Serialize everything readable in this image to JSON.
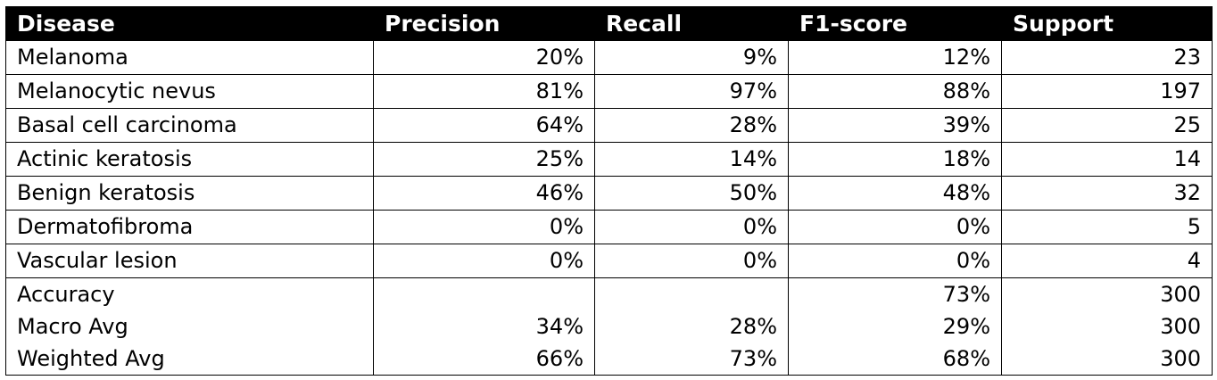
{
  "table": {
    "headers": [
      "Disease",
      "Precision",
      "Recall",
      "F1-score",
      "Support"
    ],
    "rows": [
      [
        "Melanoma",
        "20%",
        "9%",
        "12%",
        "23"
      ],
      [
        "Melanocytic nevus",
        "81%",
        "97%",
        "88%",
        "197"
      ],
      [
        "Basal cell carcinoma",
        "64%",
        "28%",
        "39%",
        "25"
      ],
      [
        "Actinic keratosis",
        "25%",
        "14%",
        "18%",
        "14"
      ],
      [
        "Benign keratosis",
        "46%",
        "50%",
        "48%",
        "32"
      ],
      [
        "Dermatofibroma",
        "0%",
        "0%",
        "0%",
        "5"
      ],
      [
        "Vascular lesion",
        "0%",
        "0%",
        "0%",
        "4"
      ]
    ],
    "summary_rows": [
      [
        "Accuracy",
        "",
        "",
        "73%",
        "300"
      ],
      [
        "Macro Avg",
        "34%",
        "28%",
        "29%",
        "300"
      ],
      [
        "Weighted Avg",
        "66%",
        "73%",
        "68%",
        "300"
      ]
    ]
  }
}
